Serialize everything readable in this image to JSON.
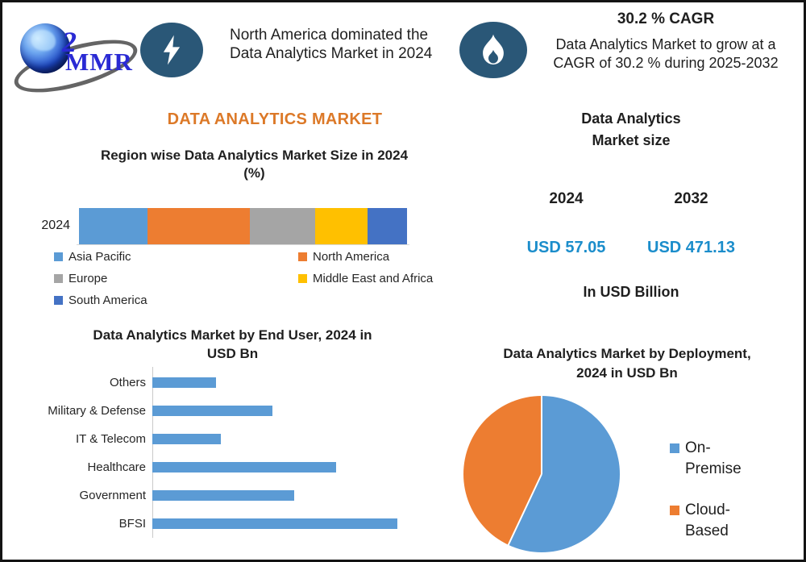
{
  "colors": {
    "accent_orange": "#DC7928",
    "value_blue": "#1B8DCB",
    "badge_blue": "#2A5777",
    "text_dark": "#1F1F1F",
    "axis_gray": "#C9C9C9",
    "logo_blue": "#2A2AD4",
    "bar_blue": "#5B9BD5"
  },
  "header": {
    "logo_text": "MMR",
    "logo_mark": "2",
    "headline_lines": [
      "North America dominated the",
      "Data Analytics Market in 2024"
    ],
    "cagr_title": "30.2 % CAGR",
    "cagr_desc_lines": [
      "Data Analytics Market to grow at a",
      "CAGR of 30.2 % during 2025-2032"
    ]
  },
  "main_title": "DATA ANALYTICS MARKET",
  "market_size": {
    "title_lines": [
      "Data Analytics",
      "Market size"
    ],
    "columns": [
      {
        "year": "2024",
        "value": "USD 57.05"
      },
      {
        "year": "2032",
        "value": "USD 471.13"
      }
    ],
    "unit": "In USD Billion"
  },
  "chart_data": [
    {
      "id": "region-share",
      "type": "bar",
      "subtype": "stacked-horizontal",
      "title": "Region wise Data Analytics Market Size in 2024 (%)",
      "title_lines": [
        "Region wise Data Analytics Market Size in 2024",
        "(%)"
      ],
      "categories": [
        "2024"
      ],
      "series": [
        {
          "name": "Asia Pacific",
          "value": 21,
          "color": "#5B9BD5"
        },
        {
          "name": "North America",
          "value": 31,
          "color": "#ED7D31"
        },
        {
          "name": "Europe",
          "value": 20,
          "color": "#A5A5A5"
        },
        {
          "name": "Middle East and Africa",
          "value": 16,
          "color": "#FFC000"
        },
        {
          "name": "South America",
          "value": 12,
          "color": "#4472C4"
        }
      ],
      "unit": "%",
      "legend_position": "bottom"
    },
    {
      "id": "end-user",
      "type": "bar",
      "subtype": "horizontal",
      "title": "Data Analytics Market by End User, 2024 in USD Bn",
      "title_lines": [
        "Data Analytics Market by End User, 2024 in",
        "USD Bn"
      ],
      "categories": [
        "Others",
        "Military & Defense",
        "IT & Telecom",
        "Healthcare",
        "Government",
        "BFSI"
      ],
      "values": [
        26,
        49,
        28,
        75,
        58,
        100
      ],
      "value_scale": "relative bar lengths, max = 100 (axis unlabeled)",
      "bar_color": "#5B9BD5",
      "grid": false
    },
    {
      "id": "deployment",
      "type": "pie",
      "title": "Data Analytics Market by Deployment, 2024 in USD Bn",
      "title_lines": [
        "Data Analytics Market by Deployment,",
        "2024 in USD Bn"
      ],
      "slices": [
        {
          "name": "On-Premise",
          "value": 57,
          "color": "#5B9BD5"
        },
        {
          "name": "Cloud-Based",
          "value": 43,
          "color": "#ED7D31"
        }
      ],
      "start_angle_deg": 0,
      "legend_position": "right"
    }
  ]
}
